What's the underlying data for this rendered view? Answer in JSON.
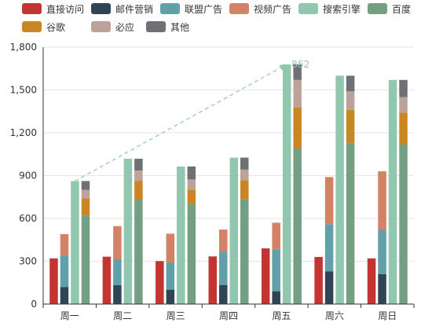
{
  "chart_data": {
    "type": "bar",
    "categories": [
      "周一",
      "周二",
      "周三",
      "周四",
      "周五",
      "周六",
      "周日"
    ],
    "ylim": [
      0,
      1800
    ],
    "yticks": [
      "0",
      "300",
      "600",
      "900",
      "1,200",
      "1,500",
      "1,800"
    ],
    "legend_position": "top-left",
    "series": [
      {
        "name": "直接访问",
        "color": "#c23531",
        "stack": null,
        "values": [
          320,
          332,
          301,
          334,
          390,
          330,
          320
        ]
      },
      {
        "name": "邮件营销",
        "color": "#2f4554",
        "stack": "广告",
        "values": [
          120,
          132,
          101,
          134,
          90,
          230,
          210
        ]
      },
      {
        "name": "联盟广告",
        "color": "#61a0a8",
        "stack": "广告",
        "values": [
          220,
          182,
          191,
          234,
          290,
          330,
          310
        ]
      },
      {
        "name": "视频广告",
        "color": "#d48265",
        "stack": "广告",
        "values": [
          150,
          232,
          201,
          154,
          190,
          330,
          410
        ]
      },
      {
        "name": "搜索引擎",
        "color": "#91c7ae",
        "stack": null,
        "values": [
          862,
          1018,
          964,
          1026,
          1679,
          1600,
          1570
        ]
      },
      {
        "name": "百度",
        "color": "#749f83",
        "stack": "搜索引擎",
        "values": [
          620,
          732,
          701,
          734,
          1090,
          1130,
          1120
        ]
      },
      {
        "name": "谷歌",
        "color": "#ca8622",
        "stack": "搜索引擎",
        "values": [
          120,
          132,
          101,
          134,
          290,
          230,
          220
        ]
      },
      {
        "name": "必应",
        "color": "#bda29a",
        "stack": "搜索引擎",
        "values": [
          60,
          72,
          71,
          74,
          190,
          130,
          110
        ]
      },
      {
        "name": "其他",
        "color": "#6e7074",
        "stack": "搜索引擎",
        "values": [
          62,
          82,
          91,
          84,
          109,
          110,
          120
        ]
      }
    ],
    "annotation": {
      "label": "862",
      "from_category": "周一",
      "to_category": "周五",
      "color": "#91c7ae"
    }
  }
}
